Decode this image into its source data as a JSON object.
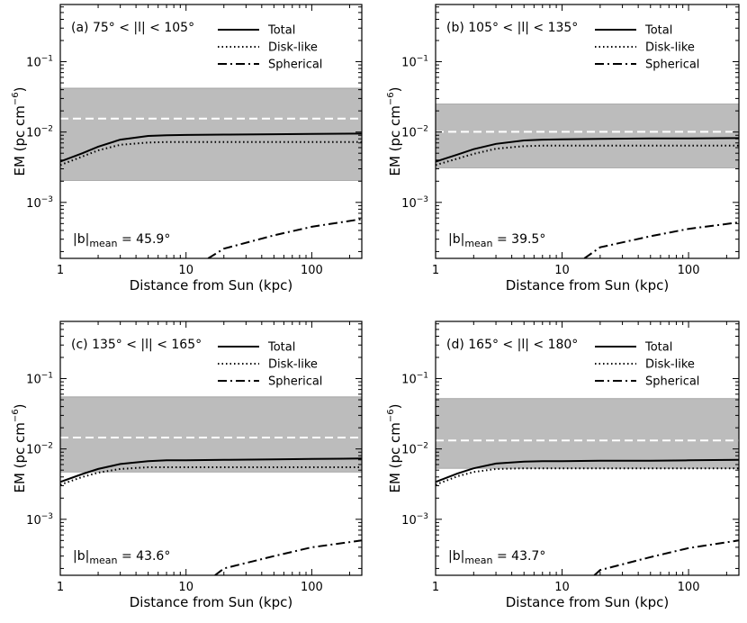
{
  "figure": {
    "description_free": true
  },
  "chart_data": [
    {
      "type": "line",
      "panel_label": "(a)",
      "range_label": "75° < |l| < 105°",
      "xlabel": "Distance from Sun (kpc)",
      "ylabel": "EM (pc cm",
      "ylabel_exp": "−6",
      "xscale": "log",
      "yscale": "log",
      "xlim": [
        1,
        250
      ],
      "ylim": [
        0.00016,
        0.65
      ],
      "x_ticks": [
        {
          "value": 1,
          "label": "1"
        },
        {
          "value": 10,
          "label": "10"
        },
        {
          "value": 100,
          "label": "100"
        }
      ],
      "y_ticks": [
        {
          "value": 0.001,
          "base": "10",
          "exp": "−3"
        },
        {
          "value": 0.01,
          "base": "10",
          "exp": "−2"
        },
        {
          "value": 0.1,
          "base": "10",
          "exp": "−1"
        }
      ],
      "legend": [
        "Total",
        "Disk-like",
        "Spherical"
      ],
      "band": {
        "low": 0.00205,
        "high": 0.042
      },
      "obs_mean": 0.0155,
      "x": [
        1,
        1.5,
        2,
        3,
        5,
        7,
        10,
        20,
        50,
        100,
        250
      ],
      "series": [
        {
          "name": "Total",
          "values": [
            0.0038,
            0.005,
            0.0062,
            0.0078,
            0.0088,
            0.009,
            0.0091,
            0.0092,
            0.0093,
            0.0094,
            0.0095
          ]
        },
        {
          "name": "Disk-like",
          "values": [
            0.0034,
            0.0045,
            0.0055,
            0.0066,
            0.0071,
            0.0072,
            0.0072,
            0.0072,
            0.0072,
            0.0072,
            0.0072
          ]
        },
        {
          "name": "Spherical",
          "values": [
            null,
            null,
            null,
            null,
            null,
            null,
            null,
            0.00022,
            0.00034,
            0.00045,
            0.00058
          ]
        }
      ],
      "sph_start": {
        "x": 15,
        "y": 0.00016
      },
      "b_mean": {
        "prefix": "|b|",
        "sub": "mean",
        "value": " = 45.9°"
      }
    },
    {
      "type": "line",
      "panel_label": "(b)",
      "range_label": "105° < |l| < 135°",
      "xlabel": "Distance from Sun (kpc)",
      "ylabel": "EM (pc cm",
      "ylabel_exp": "−6",
      "xscale": "log",
      "yscale": "log",
      "xlim": [
        1,
        250
      ],
      "ylim": [
        0.00016,
        0.65
      ],
      "x_ticks": [
        {
          "value": 1,
          "label": "1"
        },
        {
          "value": 10,
          "label": "10"
        },
        {
          "value": 100,
          "label": "100"
        }
      ],
      "y_ticks": [
        {
          "value": 0.001,
          "base": "10",
          "exp": "−3"
        },
        {
          "value": 0.01,
          "base": "10",
          "exp": "−2"
        },
        {
          "value": 0.1,
          "base": "10",
          "exp": "−1"
        }
      ],
      "legend": [
        "Total",
        "Disk-like",
        "Spherical"
      ],
      "band": {
        "low": 0.0031,
        "high": 0.025
      },
      "obs_mean": 0.0101,
      "x": [
        1,
        1.5,
        2,
        3,
        5,
        7,
        10,
        20,
        50,
        100,
        250
      ],
      "series": [
        {
          "name": "Total",
          "values": [
            0.0038,
            0.0048,
            0.0057,
            0.0068,
            0.0076,
            0.0078,
            0.0079,
            0.008,
            0.0081,
            0.0081,
            0.0082
          ]
        },
        {
          "name": "Disk-like",
          "values": [
            0.0034,
            0.0042,
            0.0049,
            0.0058,
            0.0063,
            0.0064,
            0.0064,
            0.0064,
            0.0064,
            0.0064,
            0.0064
          ]
        },
        {
          "name": "Spherical",
          "values": [
            null,
            null,
            null,
            null,
            null,
            null,
            null,
            0.00023,
            0.00033,
            0.00042,
            0.00052
          ]
        }
      ],
      "sph_start": {
        "x": 15,
        "y": 0.00016
      },
      "b_mean": {
        "prefix": "|b|",
        "sub": "mean",
        "value": " = 39.5°"
      }
    },
    {
      "type": "line",
      "panel_label": "(c)",
      "range_label": "135° < |l| < 165°",
      "xlabel": "Distance from Sun (kpc)",
      "ylabel": "EM (pc cm",
      "ylabel_exp": "−6",
      "xscale": "log",
      "yscale": "log",
      "xlim": [
        1,
        250
      ],
      "ylim": [
        0.00016,
        0.65
      ],
      "x_ticks": [
        {
          "value": 1,
          "label": "1"
        },
        {
          "value": 10,
          "label": "10"
        },
        {
          "value": 100,
          "label": "100"
        }
      ],
      "y_ticks": [
        {
          "value": 0.001,
          "base": "10",
          "exp": "−3"
        },
        {
          "value": 0.01,
          "base": "10",
          "exp": "−2"
        },
        {
          "value": 0.1,
          "base": "10",
          "exp": "−1"
        }
      ],
      "legend": [
        "Total",
        "Disk-like",
        "Spherical"
      ],
      "band": {
        "low": 0.0047,
        "high": 0.055
      },
      "obs_mean": 0.0145,
      "x": [
        1,
        1.5,
        2,
        3,
        5,
        7,
        10,
        20,
        50,
        100,
        250
      ],
      "series": [
        {
          "name": "Total",
          "values": [
            0.0034,
            0.0044,
            0.0052,
            0.0061,
            0.0067,
            0.0069,
            0.0069,
            0.007,
            0.0071,
            0.0072,
            0.0073
          ]
        },
        {
          "name": "Disk-like",
          "values": [
            0.0031,
            0.004,
            0.0046,
            0.0052,
            0.0055,
            0.0055,
            0.0055,
            0.0055,
            0.0055,
            0.0055,
            0.0055
          ]
        },
        {
          "name": "Spherical",
          "values": [
            null,
            null,
            null,
            null,
            null,
            null,
            null,
            0.0002,
            0.0003,
            0.0004,
            0.0005
          ]
        }
      ],
      "sph_start": {
        "x": 17,
        "y": 0.00016
      },
      "b_mean": {
        "prefix": "|b|",
        "sub": "mean",
        "value": " = 43.6°"
      }
    },
    {
      "type": "line",
      "panel_label": "(d)",
      "range_label": "165° < |l| < 180°",
      "xlabel": "Distance from Sun (kpc)",
      "ylabel": "EM (pc cm",
      "ylabel_exp": "−6",
      "xscale": "log",
      "yscale": "log",
      "xlim": [
        1,
        250
      ],
      "ylim": [
        0.00016,
        0.65
      ],
      "x_ticks": [
        {
          "value": 1,
          "label": "1"
        },
        {
          "value": 10,
          "label": "10"
        },
        {
          "value": 100,
          "label": "100"
        }
      ],
      "y_ticks": [
        {
          "value": 0.001,
          "base": "10",
          "exp": "−3"
        },
        {
          "value": 0.01,
          "base": "10",
          "exp": "−2"
        },
        {
          "value": 0.1,
          "base": "10",
          "exp": "−1"
        }
      ],
      "legend": [
        "Total",
        "Disk-like",
        "Spherical"
      ],
      "band": {
        "low": 0.0053,
        "high": 0.052
      },
      "obs_mean": 0.0132,
      "x": [
        1,
        1.5,
        2,
        3,
        5,
        7,
        10,
        20,
        50,
        100,
        250
      ],
      "series": [
        {
          "name": "Total",
          "values": [
            0.0034,
            0.0045,
            0.0053,
            0.0062,
            0.0066,
            0.0067,
            0.0067,
            0.0068,
            0.0068,
            0.0069,
            0.007
          ]
        },
        {
          "name": "Disk-like",
          "values": [
            0.0031,
            0.0041,
            0.0047,
            0.0052,
            0.0053,
            0.0053,
            0.0053,
            0.0053,
            0.0053,
            0.0053,
            0.0053
          ]
        },
        {
          "name": "Spherical",
          "values": [
            null,
            null,
            null,
            null,
            null,
            null,
            null,
            0.00019,
            0.00029,
            0.00039,
            0.0005
          ]
        }
      ],
      "sph_start": {
        "x": 18,
        "y": 0.00016
      },
      "b_mean": {
        "prefix": "|b|",
        "sub": "mean",
        "value": " = 43.7°"
      }
    }
  ]
}
